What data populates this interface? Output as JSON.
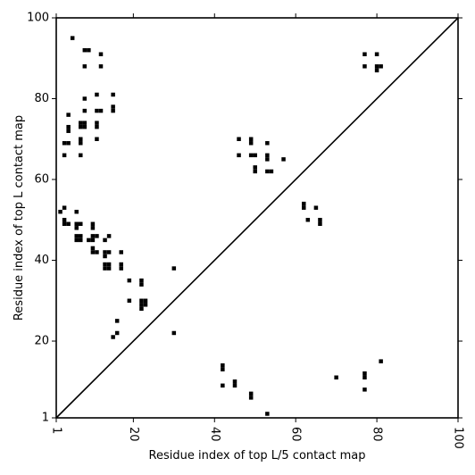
{
  "chart_data": {
    "type": "scatter",
    "title": "",
    "xlabel": "Residue index of top L/5 contact map",
    "ylabel": "Residue index of top L contact map",
    "xlim": [
      1,
      100
    ],
    "ylim": [
      1,
      100
    ],
    "x_ticks": [
      1,
      20,
      40,
      60,
      80,
      100
    ],
    "y_ticks": [
      1,
      20,
      40,
      60,
      80,
      100
    ],
    "x_tick_rotation": -90,
    "marker": "filled-square",
    "grid": false,
    "legend": "none",
    "diagonal_line": true,
    "colors": {
      "marker": "#000000",
      "axes": "#000000",
      "background": "#ffffff"
    },
    "series": [
      {
        "points": [
          [
            5,
            95
          ],
          [
            8,
            92
          ],
          [
            9,
            92
          ],
          [
            12,
            91
          ],
          [
            8,
            88
          ],
          [
            12,
            88
          ],
          [
            8,
            80
          ],
          [
            11,
            81
          ],
          [
            15,
            81
          ],
          [
            4,
            76
          ],
          [
            8,
            77
          ],
          [
            11,
            77
          ],
          [
            12,
            77
          ],
          [
            15,
            78
          ],
          [
            15,
            77
          ],
          [
            4,
            73
          ],
          [
            4,
            72
          ],
          [
            7,
            74
          ],
          [
            8,
            74
          ],
          [
            7,
            73
          ],
          [
            8,
            73
          ],
          [
            11,
            74
          ],
          [
            11,
            73
          ],
          [
            3,
            69
          ],
          [
            4,
            69
          ],
          [
            7,
            70
          ],
          [
            7,
            69
          ],
          [
            11,
            70
          ],
          [
            3,
            66
          ],
          [
            7,
            66
          ],
          [
            2,
            52
          ],
          [
            3,
            53
          ],
          [
            6,
            52
          ],
          [
            3,
            50
          ],
          [
            3,
            49
          ],
          [
            4,
            49
          ],
          [
            6,
            49
          ],
          [
            7,
            49
          ],
          [
            6,
            48
          ],
          [
            10,
            49
          ],
          [
            10,
            48
          ],
          [
            6,
            46
          ],
          [
            7,
            46
          ],
          [
            6,
            45
          ],
          [
            7,
            45
          ],
          [
            9,
            45
          ],
          [
            10,
            45
          ],
          [
            10,
            46
          ],
          [
            11,
            46
          ],
          [
            13,
            45
          ],
          [
            14,
            46
          ],
          [
            10,
            43
          ],
          [
            10,
            42
          ],
          [
            11,
            42
          ],
          [
            13,
            42
          ],
          [
            13,
            41
          ],
          [
            14,
            42
          ],
          [
            17,
            42
          ],
          [
            13,
            39
          ],
          [
            14,
            39
          ],
          [
            13,
            38
          ],
          [
            14,
            38
          ],
          [
            17,
            39
          ],
          [
            17,
            38
          ],
          [
            19,
            35
          ],
          [
            22,
            35
          ],
          [
            22,
            34
          ],
          [
            19,
            30
          ],
          [
            22,
            30
          ],
          [
            23,
            30
          ],
          [
            22,
            29
          ],
          [
            23,
            29
          ],
          [
            22,
            28
          ],
          [
            16,
            25
          ],
          [
            16,
            22
          ],
          [
            15,
            21
          ],
          [
            30,
            38
          ],
          [
            30,
            22
          ],
          [
            46,
            70
          ],
          [
            49,
            70
          ],
          [
            49,
            69
          ],
          [
            53,
            69
          ],
          [
            46,
            66
          ],
          [
            49,
            66
          ],
          [
            50,
            66
          ],
          [
            53,
            66
          ],
          [
            53,
            65
          ],
          [
            57,
            65
          ],
          [
            50,
            63
          ],
          [
            50,
            62
          ],
          [
            53,
            62
          ],
          [
            54,
            62
          ],
          [
            62,
            54
          ],
          [
            62,
            53
          ],
          [
            65,
            53
          ],
          [
            63,
            50
          ],
          [
            66,
            50
          ],
          [
            66,
            49
          ],
          [
            77,
            91
          ],
          [
            80,
            91
          ],
          [
            77,
            88
          ],
          [
            80,
            88
          ],
          [
            81,
            88
          ],
          [
            80,
            87
          ],
          [
            42,
            14
          ],
          [
            42,
            13
          ],
          [
            45,
            10
          ],
          [
            45,
            9
          ],
          [
            42,
            9
          ],
          [
            49,
            7
          ],
          [
            49,
            6
          ],
          [
            53,
            2
          ],
          [
            70,
            11
          ],
          [
            77,
            12
          ],
          [
            77,
            11
          ],
          [
            81,
            15
          ],
          [
            77,
            8
          ]
        ]
      }
    ]
  }
}
